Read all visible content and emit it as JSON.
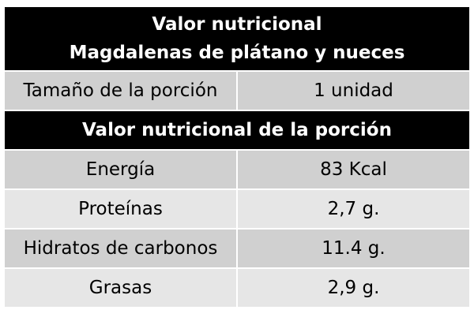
{
  "title": {
    "line1": "Valor nutricional",
    "line2": "Magdalenas de plátano y nueces"
  },
  "serving": {
    "label": "Tamaño de la porción",
    "value": "1 unidad"
  },
  "section_title": "Valor nutricional de la porción",
  "rows": [
    {
      "label": "Energía",
      "value": "83 Kcal"
    },
    {
      "label": "Proteínas",
      "value": "2,7 g."
    },
    {
      "label": "Hidratos de carbonos",
      "value": "11.4 g."
    },
    {
      "label": "Grasas",
      "value": "2,9 g."
    }
  ],
  "colors": {
    "header_bg": "#000000",
    "header_text": "#ffffff",
    "row_dark": "#d0d0d0",
    "row_light": "#e6e6e6"
  }
}
